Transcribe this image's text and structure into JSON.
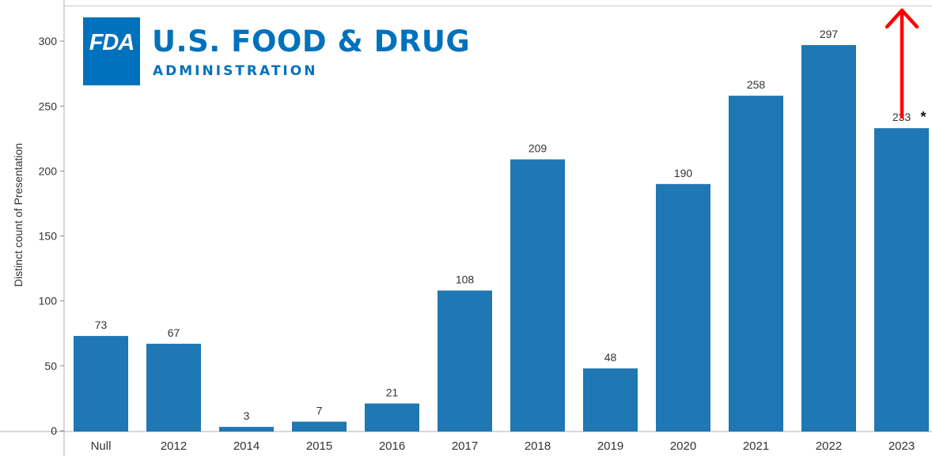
{
  "chart_data": {
    "type": "bar",
    "ylabel": "Distinct count of Presentation",
    "xlabel": "",
    "ylim": [
      0,
      322
    ],
    "yticks": [
      0,
      50,
      100,
      150,
      200,
      250,
      300
    ],
    "categories": [
      "Null",
      "2012",
      "2014",
      "2015",
      "2016",
      "2017",
      "2018",
      "2019",
      "2020",
      "2021",
      "2022",
      "2023"
    ],
    "values": [
      73,
      67,
      3,
      7,
      21,
      108,
      209,
      48,
      190,
      258,
      297,
      233
    ],
    "bar_color": "#1f77b4",
    "annotations": [
      {
        "category": "2023",
        "text": "*"
      }
    ],
    "grid": false
  },
  "logo": {
    "mark": "FDA",
    "line1": "U.S. FOOD & DRUG",
    "line2": "ADMINISTRATION",
    "color": "#0071bc"
  },
  "arrow": {
    "direction": "up",
    "color": "#ff0000"
  }
}
